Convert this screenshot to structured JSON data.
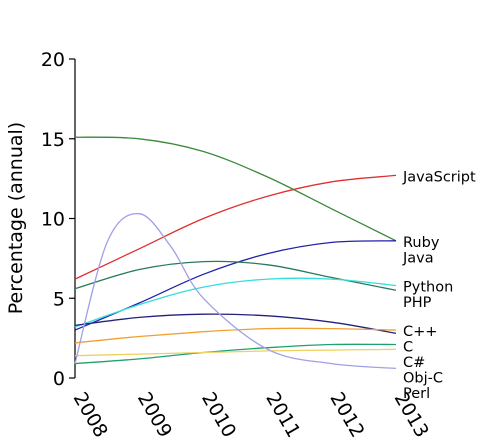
{
  "chart_data": {
    "type": "line",
    "ylabel": "Percentage (annual)",
    "xlabel": "",
    "ylim": [
      0,
      20
    ],
    "yticks": [
      "0",
      "5",
      "10",
      "15",
      "20"
    ],
    "xlim": [
      2008,
      2013
    ],
    "xticks": [
      "2008",
      "2009",
      "2010",
      "2011",
      "2012",
      "2013"
    ],
    "grid": false,
    "legend": "series labels at right end of each line",
    "series": [
      {
        "name": "JavaScript",
        "color": "#e03030",
        "x": [
          2008,
          2009,
          2010,
          2011,
          2012,
          2013
        ],
        "values": [
          6.2,
          8.1,
          10.0,
          11.4,
          12.3,
          12.7
        ]
      },
      {
        "name": "Ruby",
        "color": "#3a8a3a",
        "x": [
          2008,
          2009,
          2010,
          2011,
          2012,
          2013
        ],
        "values": [
          15.1,
          15.0,
          14.2,
          12.6,
          10.6,
          8.6
        ]
      },
      {
        "name": "Java",
        "color": "#2222aa",
        "x": [
          2008,
          2009,
          2010,
          2011,
          2012,
          2013
        ],
        "values": [
          3.0,
          4.7,
          6.5,
          7.8,
          8.5,
          8.6
        ]
      },
      {
        "name": "PHP",
        "color": "#2a7a5a",
        "x": [
          2008,
          2009,
          2010,
          2011,
          2012,
          2013
        ],
        "values": [
          5.6,
          6.8,
          7.3,
          7.1,
          6.3,
          5.5
        ]
      },
      {
        "name": "Python",
        "color": "#33dddd",
        "x": [
          2008,
          2009,
          2010,
          2011,
          2012,
          2013
        ],
        "values": [
          3.2,
          4.6,
          5.7,
          6.2,
          6.2,
          5.8
        ]
      },
      {
        "name": "C",
        "color": "#22227a",
        "x": [
          2008,
          2009,
          2010,
          2011,
          2012,
          2013
        ],
        "values": [
          3.3,
          3.8,
          4.0,
          3.9,
          3.5,
          2.8
        ]
      },
      {
        "name": "C++",
        "color": "#f0a030",
        "x": [
          2008,
          2009,
          2010,
          2011,
          2012,
          2013
        ],
        "values": [
          2.2,
          2.6,
          2.9,
          3.1,
          3.1,
          3.0
        ]
      },
      {
        "name": "C#",
        "color": "#20a070",
        "x": [
          2008,
          2009,
          2010,
          2011,
          2012,
          2013
        ],
        "values": [
          0.9,
          1.2,
          1.6,
          1.9,
          2.1,
          2.1
        ]
      },
      {
        "name": "Obj-C",
        "color": "#f0d060",
        "x": [
          2008,
          2009,
          2010,
          2011,
          2012,
          2013
        ],
        "values": [
          1.4,
          1.5,
          1.6,
          1.7,
          1.75,
          1.8
        ]
      },
      {
        "name": "Perl",
        "color": "#a0a0e8",
        "x": [
          2008,
          2008.5,
          2009,
          2009.5,
          2010,
          2011,
          2012,
          2013
        ],
        "values": [
          0.9,
          8.5,
          10.3,
          8.2,
          5.0,
          1.8,
          0.9,
          0.6
        ]
      }
    ]
  }
}
